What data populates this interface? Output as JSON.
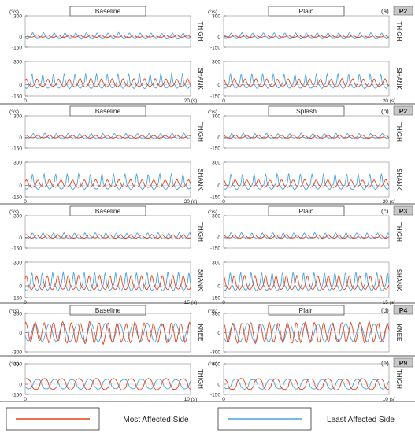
{
  "chart_data": {
    "type": "line",
    "series": [
      {
        "name": "Most Affected Side",
        "color": "#e8401c"
      },
      {
        "name": "Least Affected Side",
        "color": "#4aa3df"
      }
    ],
    "legend": {
      "placement": "bottom",
      "items": [
        "Most Affected Side",
        "Least Affected Side"
      ]
    },
    "y_unit": "(°/s)",
    "x_unit": "(s)",
    "panels": [
      {
        "tag": "(a)",
        "subject": "P2",
        "conditions": [
          "Baseline",
          "Plain"
        ],
        "duration": 20,
        "x_ticks": [
          "0",
          "20 (s)"
        ],
        "rows": [
          {
            "label": "THIGH",
            "ylim": [
              -150,
              300
            ],
            "y_ticks": [
              300,
              0,
              -150
            ],
            "waves": {
              "most": {
                "amp": 25,
                "per": 1.3,
                "sharp": 1.2,
                "noise": 6
              },
              "least": {
                "amp": 55,
                "per": 1.3,
                "sharp": 3.0,
                "noise": 8
              }
            }
          },
          {
            "label": "SHANK",
            "ylim": [
              -150,
              300
            ],
            "y_ticks": [
              300,
              0,
              -150
            ],
            "waves": {
              "most": {
                "amp": 75,
                "per": 1.3,
                "sharp": 1.6,
                "noise": 10
              },
              "least": {
                "amp": 140,
                "per": 1.3,
                "sharp": 5.0,
                "noise": 10
              }
            }
          }
        ]
      },
      {
        "tag": "(b)",
        "subject": "P2",
        "conditions": [
          "Baseline",
          "Splash"
        ],
        "duration": 20,
        "x_ticks": [
          "0",
          "20 (s)"
        ],
        "rows": [
          {
            "label": "THIGH",
            "ylim": [
              -150,
              300
            ],
            "y_ticks": [
              300,
              0,
              -150
            ],
            "waves": {
              "most": {
                "amp": 28,
                "per": 1.4,
                "sharp": 1.2,
                "noise": 6
              },
              "least": {
                "amp": 55,
                "per": 1.4,
                "sharp": 3.0,
                "noise": 8
              }
            }
          },
          {
            "label": "SHANK",
            "ylim": [
              -150,
              300
            ],
            "y_ticks": [
              300,
              0,
              -150
            ],
            "waves": {
              "most": {
                "amp": 70,
                "per": 1.4,
                "sharp": 1.6,
                "noise": 8
              },
              "least": {
                "amp": 150,
                "per": 1.4,
                "sharp": 5.0,
                "noise": 10
              }
            }
          }
        ]
      },
      {
        "tag": "(c)",
        "subject": "P3",
        "conditions": [
          "Baseline",
          "Plain"
        ],
        "duration": 15,
        "x_ticks": [
          "0",
          "15 (s)"
        ],
        "rows": [
          {
            "label": "THIGH",
            "ylim": [
              -150,
              300
            ],
            "y_ticks": [
              300,
              0,
              -150
            ],
            "waves": {
              "most": {
                "amp": 35,
                "per": 0.95,
                "sharp": 1.4,
                "noise": 8
              },
              "least": {
                "amp": 60,
                "per": 0.95,
                "sharp": 2.5,
                "noise": 10
              }
            }
          },
          {
            "label": "SHANK",
            "ylim": [
              -150,
              300
            ],
            "y_ticks": [
              300,
              0,
              -150
            ],
            "waves": {
              "most": {
                "amp": 130,
                "per": 0.95,
                "sharp": 1.8,
                "noise": 10
              },
              "least": {
                "amp": 170,
                "per": 0.95,
                "sharp": 3.5,
                "noise": 12
              }
            }
          }
        ]
      },
      {
        "tag": "(d)",
        "subject": "P4",
        "conditions": [
          "Baseline",
          "Plain"
        ],
        "duration": 10,
        "x_ticks": [],
        "rows": [
          {
            "label": "KNEE",
            "ylim": [
              -300,
              300
            ],
            "y_ticks": [
              300,
              0,
              -300
            ],
            "waves": {
              "most": {
                "amp": 150,
                "per": 0.55,
                "sharp": 1.0,
                "noise": 45
              },
              "least": {
                "amp": 140,
                "per": 0.85,
                "sharp": 1.0,
                "noise": 20
              }
            }
          }
        ]
      },
      {
        "tag": "(e)",
        "subject": "P9",
        "conditions": [
          "",
          ""
        ],
        "duration": 10,
        "x_ticks": [
          "0",
          "10 (s)"
        ],
        "rows": [
          {
            "label": "THIGH",
            "ylim": [
              -150,
              300
            ],
            "y_ticks": [
              300,
              0,
              -150
            ],
            "waves": {
              "most": {
                "amp": 80,
                "per": 1.05,
                "sharp": 0.6,
                "noise": 10
              },
              "least": {
                "amp": 70,
                "per": 1.05,
                "sharp": 0.6,
                "noise": 10
              }
            }
          }
        ]
      }
    ]
  }
}
